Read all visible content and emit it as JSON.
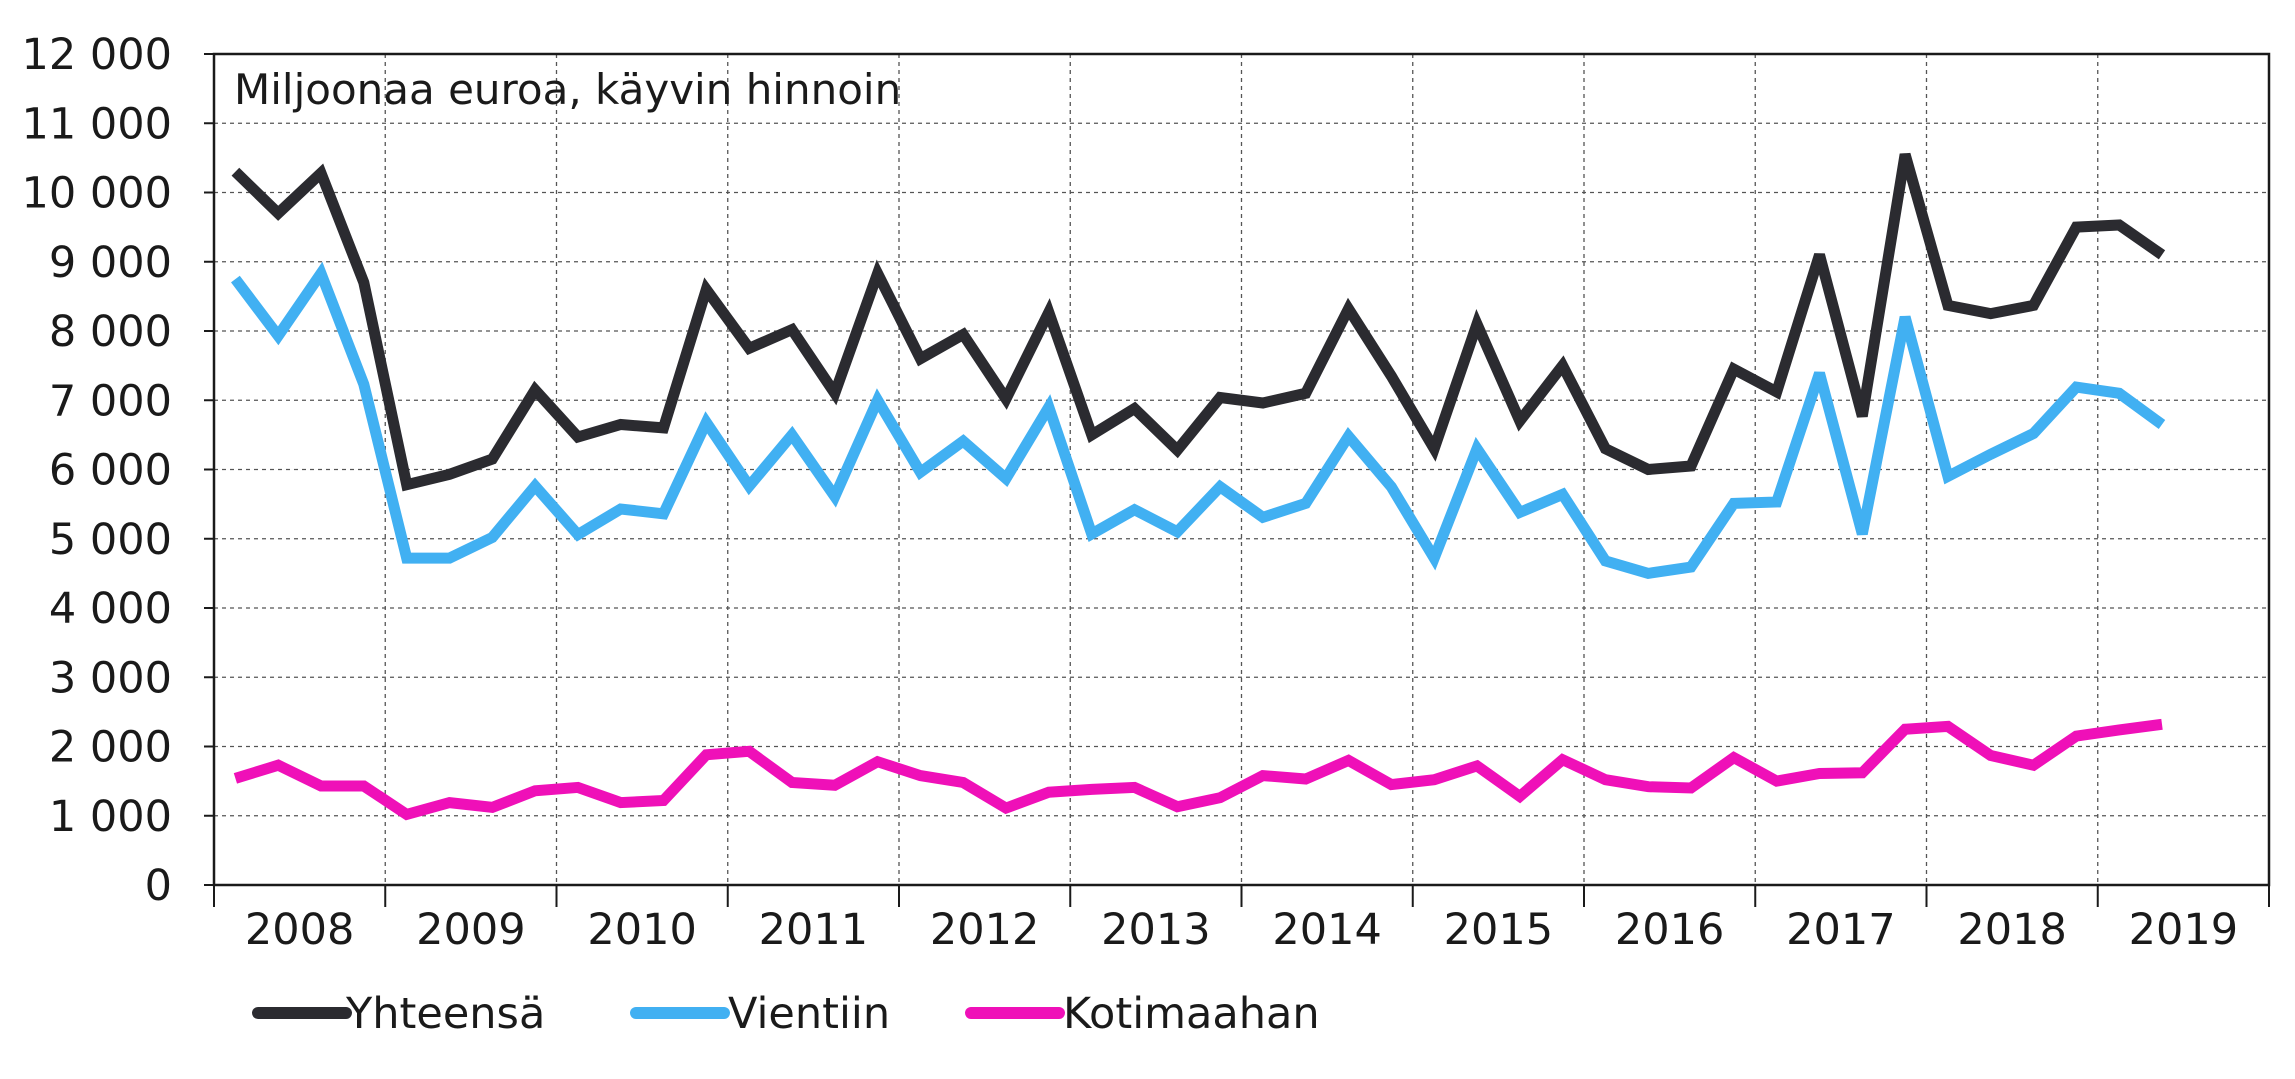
{
  "chart_data": {
    "type": "line",
    "title": "",
    "annotation": "Miljoonaa euroa, käyvin hinnoin",
    "xlabel": "",
    "ylabel": "",
    "ylim": [
      0,
      12000
    ],
    "yticks": [
      0,
      1000,
      2000,
      3000,
      4000,
      5000,
      6000,
      7000,
      8000,
      9000,
      10000,
      11000,
      12000
    ],
    "ytick_labels": [
      "0",
      "1 000",
      "2 000",
      "3 000",
      "4 000",
      "5 000",
      "6 000",
      "7 000",
      "8 000",
      "9 000",
      "10 000",
      "11 000",
      "12 000"
    ],
    "years": [
      "2008",
      "2009",
      "2010",
      "2011",
      "2012",
      "2013",
      "2014",
      "2015",
      "2016",
      "2017",
      "2018",
      "2019"
    ],
    "quarters_per_year": 4,
    "grid": true,
    "legend_position": "bottom",
    "series": [
      {
        "name": "Yhteensä",
        "color": "#2b2b30",
        "values": [
          10300,
          9700,
          10280,
          8700,
          5780,
          5930,
          6150,
          7150,
          6470,
          6650,
          6600,
          8600,
          7750,
          8020,
          7100,
          8830,
          7600,
          7950,
          7020,
          8270,
          6500,
          6880,
          6280,
          7040,
          6960,
          7100,
          8320,
          7350,
          6300,
          8100,
          6700,
          7500,
          6300,
          6000,
          6050,
          7450,
          7120,
          9100,
          6770,
          10550,
          8370,
          8250,
          8370,
          9500,
          9530,
          9100
        ]
      },
      {
        "name": "Vientiin",
        "color": "#41b0f2",
        "values": [
          8750,
          7930,
          8830,
          7230,
          4720,
          4720,
          5020,
          5760,
          5060,
          5430,
          5360,
          6680,
          5760,
          6500,
          5610,
          7000,
          5960,
          6410,
          5870,
          6900,
          5070,
          5420,
          5100,
          5750,
          5310,
          5510,
          6480,
          5750,
          4720,
          6300,
          5380,
          5640,
          4680,
          4500,
          4590,
          5510,
          5530,
          7390,
          5070,
          8200,
          5900,
          6220,
          6520,
          7190,
          7100,
          6650
        ]
      },
      {
        "name": "Kotimaahan",
        "color": "#ef10b8",
        "values": [
          1540,
          1730,
          1430,
          1430,
          1020,
          1190,
          1120,
          1360,
          1410,
          1190,
          1220,
          1880,
          1930,
          1480,
          1440,
          1780,
          1580,
          1480,
          1110,
          1340,
          1380,
          1410,
          1130,
          1260,
          1580,
          1530,
          1800,
          1450,
          1520,
          1720,
          1280,
          1810,
          1520,
          1420,
          1400,
          1840,
          1500,
          1610,
          1620,
          2250,
          2290,
          1870,
          1730,
          2150,
          2240,
          2320
        ]
      }
    ]
  }
}
